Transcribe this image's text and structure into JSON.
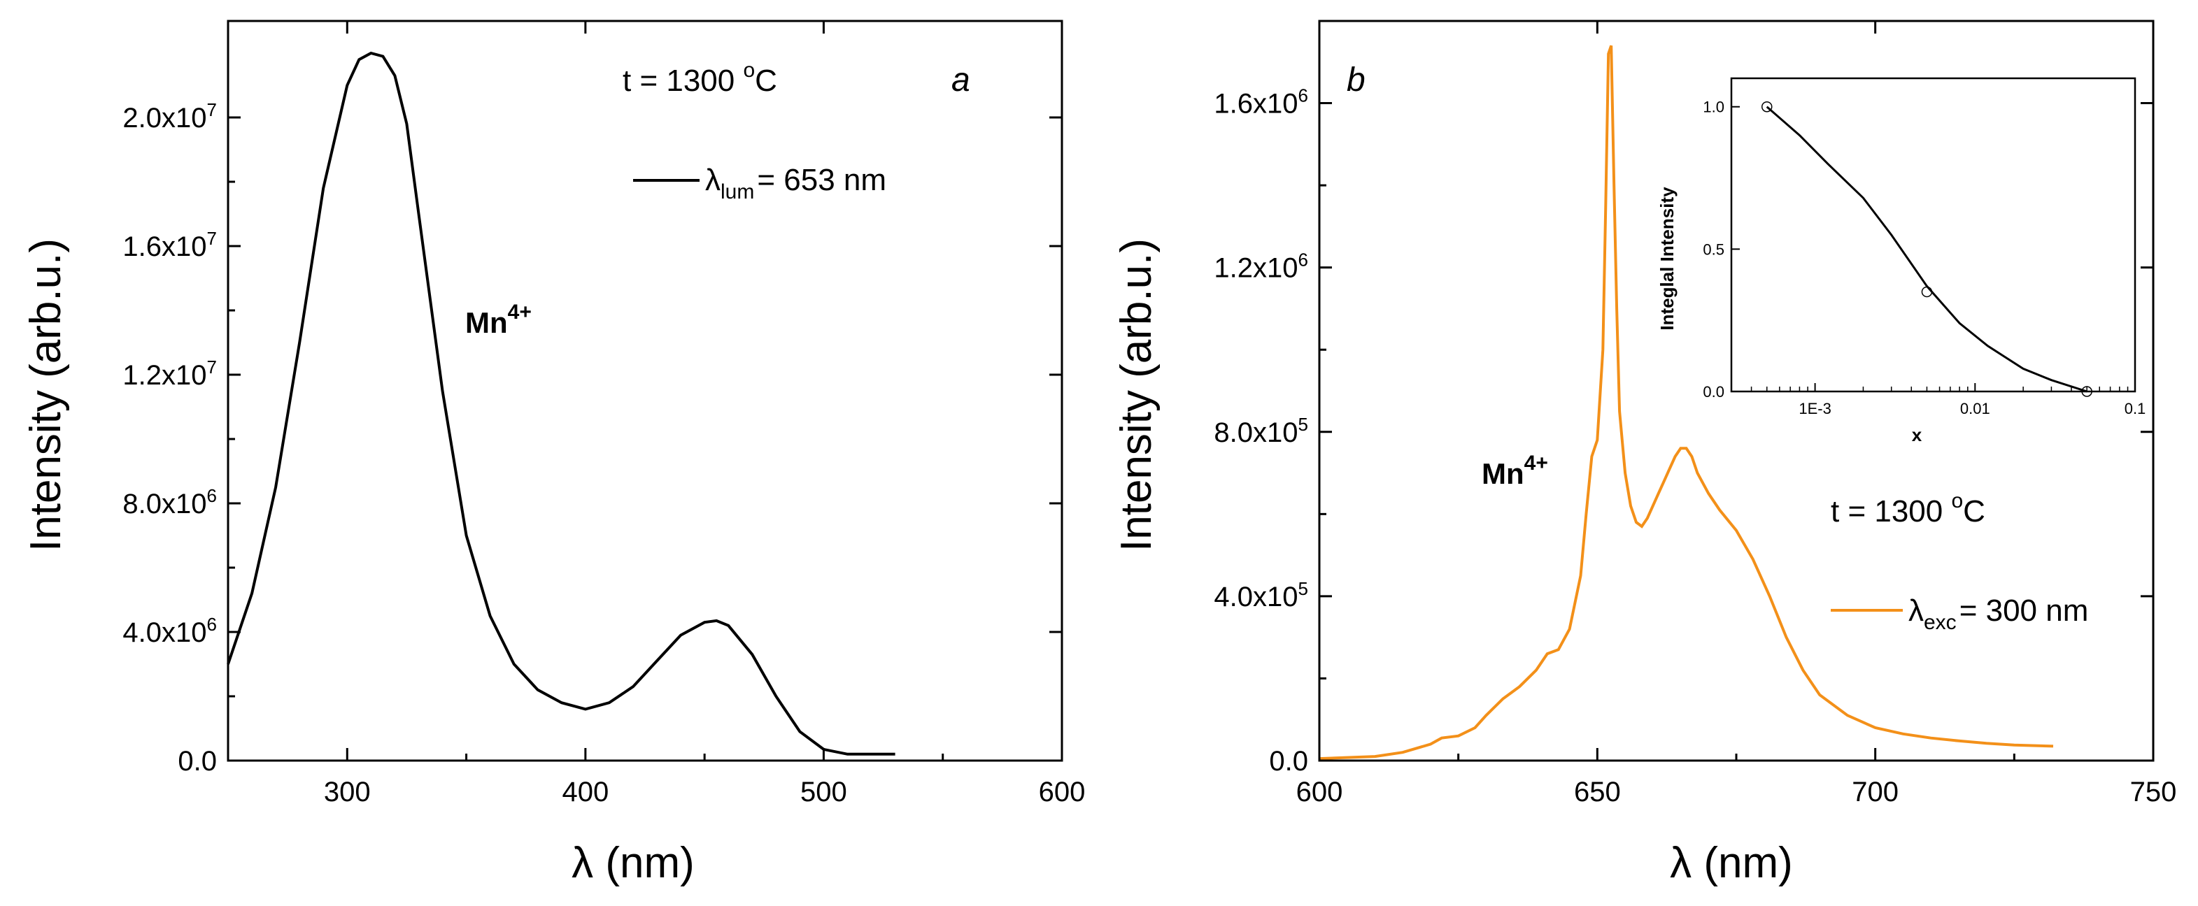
{
  "colors": {
    "panel_a_line": "#000000",
    "panel_b_line": "#f39019",
    "inset_line": "#000000",
    "axis": "#000000"
  },
  "chart_data": [
    {
      "id": "a",
      "type": "line",
      "panel_label": "a",
      "xlabel": "λ (nm)",
      "ylabel": "Intensity (arb.u.)",
      "xlim": [
        250,
        600
      ],
      "ylim": [
        0,
        23000000
      ],
      "x_ticks": [
        300,
        400,
        500,
        600
      ],
      "x_tick_labels": [
        "300",
        "400",
        "500",
        "600"
      ],
      "y_ticks": [
        0,
        4000000,
        8000000,
        12000000,
        16000000,
        20000000
      ],
      "y_tick_labels": [
        {
          "base": "0.0",
          "exp": ""
        },
        {
          "base": "4.0x10",
          "exp": "6"
        },
        {
          "base": "8.0x10",
          "exp": "6"
        },
        {
          "base": "1.2x10",
          "exp": "7"
        },
        {
          "base": "1.6x10",
          "exp": "7"
        },
        {
          "base": "2.0x10",
          "exp": "7"
        }
      ],
      "annotations": {
        "temperature": {
          "text": "t = 1300 ",
          "sup": "o",
          "after": "C"
        },
        "ion": {
          "text": "Mn",
          "sup": "4+"
        },
        "legend": {
          "symbol": "λ",
          "sub": "lum",
          "text": "= 653 nm"
        }
      },
      "series": [
        {
          "name": "λlum = 653 nm",
          "x": [
            250,
            260,
            270,
            280,
            290,
            300,
            305,
            310,
            315,
            320,
            325,
            330,
            340,
            350,
            360,
            370,
            380,
            390,
            400,
            410,
            420,
            430,
            440,
            450,
            455,
            460,
            470,
            480,
            490,
            500,
            510,
            520,
            530
          ],
          "y": [
            3000000,
            5200000,
            8500000,
            13000000,
            17800000,
            21000000,
            21800000,
            22000000,
            21900000,
            21300000,
            19800000,
            17000000,
            11500000,
            7000000,
            4500000,
            3000000,
            2200000,
            1800000,
            1600000,
            1800000,
            2300000,
            3100000,
            3900000,
            4300000,
            4350000,
            4200000,
            3300000,
            2000000,
            900000,
            350000,
            200000,
            200000,
            200000
          ]
        }
      ]
    },
    {
      "id": "b",
      "type": "line",
      "panel_label": "b",
      "xlabel": "λ (nm)",
      "ylabel": "Intensity (arb.u.)",
      "xlim": [
        600,
        750
      ],
      "ylim": [
        0,
        1800000
      ],
      "x_ticks": [
        600,
        650,
        700,
        750
      ],
      "x_tick_labels": [
        "600",
        "650",
        "700",
        "750"
      ],
      "y_ticks": [
        0,
        400000,
        800000,
        1200000,
        1600000
      ],
      "y_tick_labels": [
        {
          "base": "0.0",
          "exp": ""
        },
        {
          "base": "4.0x10",
          "exp": "5"
        },
        {
          "base": "8.0x10",
          "exp": "5"
        },
        {
          "base": "1.2x10",
          "exp": "6"
        },
        {
          "base": "1.6x10",
          "exp": "6"
        }
      ],
      "annotations": {
        "temperature": {
          "text": "t = 1300 ",
          "sup": "o",
          "after": "C"
        },
        "ion": {
          "text": "Mn",
          "sup": "4+"
        },
        "legend": {
          "symbol": "λ",
          "sub": "exc",
          "text": "= 300 nm"
        }
      },
      "series": [
        {
          "name": "λexc = 300 nm",
          "x": [
            600,
            610,
            615,
            620,
            622,
            625,
            628,
            630,
            633,
            636,
            639,
            641,
            643,
            645,
            647,
            648,
            649,
            650,
            651,
            651.5,
            652,
            652.5,
            653,
            653.5,
            654,
            655,
            656,
            657,
            658,
            659,
            660,
            661,
            662,
            663,
            664,
            665,
            666,
            667,
            668,
            670,
            672,
            675,
            678,
            681,
            684,
            687,
            690,
            695,
            700,
            705,
            710,
            715,
            720,
            725,
            732
          ],
          "y": [
            5000,
            10000,
            20000,
            40000,
            55000,
            60000,
            80000,
            110000,
            150000,
            180000,
            220000,
            260000,
            270000,
            320000,
            450000,
            600000,
            740000,
            780000,
            1000000,
            1350000,
            1720000,
            1740000,
            1400000,
            1100000,
            850000,
            700000,
            620000,
            580000,
            570000,
            590000,
            620000,
            650000,
            680000,
            710000,
            740000,
            760000,
            760000,
            740000,
            700000,
            650000,
            610000,
            560000,
            490000,
            400000,
            300000,
            220000,
            160000,
            110000,
            80000,
            65000,
            55000,
            48000,
            42000,
            38000,
            35000
          ]
        }
      ],
      "inset": {
        "type": "line",
        "xlabel": "x",
        "ylabel": "Integlal Intensity",
        "x_scale": "log",
        "xlim": [
          0.0003,
          0.1
        ],
        "ylim": [
          0,
          1.1
        ],
        "x_ticks": [
          0.001,
          0.01,
          0.1
        ],
        "x_tick_labels": [
          "1E-3",
          "0.01",
          "0.1"
        ],
        "y_ticks": [
          0,
          0.5,
          1.0
        ],
        "y_tick_labels": [
          "0.0",
          "0.5",
          "1.0"
        ],
        "points": {
          "x": [
            0.0005,
            0.005,
            0.05
          ],
          "y": [
            1.0,
            0.35,
            0.0
          ]
        },
        "fit": {
          "x": [
            0.0005,
            0.0008,
            0.0012,
            0.002,
            0.003,
            0.005,
            0.008,
            0.012,
            0.02,
            0.03,
            0.05
          ],
          "y": [
            1.0,
            0.9,
            0.8,
            0.68,
            0.55,
            0.37,
            0.24,
            0.16,
            0.08,
            0.04,
            0.0
          ]
        }
      }
    }
  ]
}
